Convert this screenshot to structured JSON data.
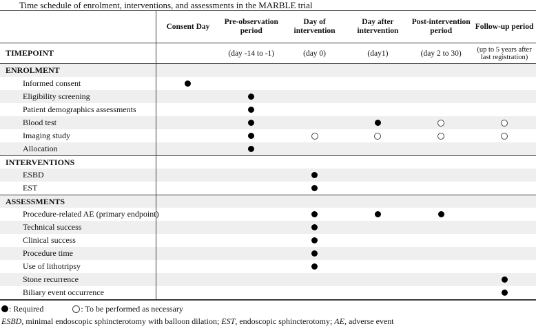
{
  "title": "Time schedule of enrolment, interventions, and assessments in the MARBLE trial",
  "colors": {
    "row_shade": "#efefef",
    "line": "#3c3c3c",
    "dot_filled": "#000000",
    "dot_open_border": "#444444"
  },
  "table": {
    "timepoint_label": "TIMEPOINT",
    "columns": [
      {
        "label": "Consent Day",
        "timepoint": ""
      },
      {
        "label": "Pre-observation\nperiod",
        "timepoint": "(day -14 to -1)"
      },
      {
        "label": "Day of\nintervention",
        "timepoint": "(day 0)"
      },
      {
        "label": "Day after\nintervention",
        "timepoint": "(day1)"
      },
      {
        "label": "Post-intervention\nperiod",
        "timepoint": "(day 2 to 30)"
      },
      {
        "label": "Follow-up period",
        "timepoint": "(up to 5 years after\nlast registration)"
      }
    ],
    "cell_legend": {
      "filled": "Required",
      "open": "To be performed as necessary"
    },
    "rows": [
      {
        "type": "section",
        "label": "ENROLMENT",
        "shaded": true,
        "divider": false,
        "cells": [
          "",
          "",
          "",
          "",
          "",
          ""
        ]
      },
      {
        "type": "item",
        "label": "Informed consent",
        "shaded": false,
        "divider": false,
        "cells": [
          "filled",
          "",
          "",
          "",
          "",
          ""
        ]
      },
      {
        "type": "item",
        "label": "Eligibility screening",
        "shaded": true,
        "divider": false,
        "cells": [
          "",
          "filled",
          "",
          "",
          "",
          ""
        ]
      },
      {
        "type": "item",
        "label": "Patient demographics assessments",
        "shaded": false,
        "divider": false,
        "cells": [
          "",
          "filled",
          "",
          "",
          "",
          ""
        ]
      },
      {
        "type": "item",
        "label": "Blood test",
        "shaded": true,
        "divider": false,
        "cells": [
          "",
          "filled",
          "",
          "filled",
          "open",
          "open"
        ]
      },
      {
        "type": "item",
        "label": "Imaging study",
        "shaded": false,
        "divider": false,
        "cells": [
          "",
          "filled",
          "open",
          "open",
          "open",
          "open"
        ]
      },
      {
        "type": "item",
        "label": "Allocation",
        "shaded": true,
        "divider": false,
        "cells": [
          "",
          "filled",
          "",
          "",
          "",
          ""
        ]
      },
      {
        "type": "section",
        "label": "INTERVENTIONS",
        "shaded": false,
        "divider": true,
        "cells": [
          "",
          "",
          "",
          "",
          "",
          ""
        ]
      },
      {
        "type": "item",
        "label": "ESBD",
        "shaded": true,
        "divider": false,
        "cells": [
          "",
          "",
          "filled",
          "",
          "",
          ""
        ]
      },
      {
        "type": "item",
        "label": "EST",
        "shaded": false,
        "divider": false,
        "cells": [
          "",
          "",
          "filled",
          "",
          "",
          ""
        ]
      },
      {
        "type": "section",
        "label": "ASSESSMENTS",
        "shaded": true,
        "divider": true,
        "cells": [
          "",
          "",
          "",
          "",
          "",
          ""
        ]
      },
      {
        "type": "item",
        "label": "Procedure-related AE (primary endpoint)",
        "shaded": false,
        "divider": false,
        "cells": [
          "",
          "",
          "filled",
          "filled",
          "filled",
          ""
        ]
      },
      {
        "type": "item",
        "label": "Technical success",
        "shaded": true,
        "divider": false,
        "cells": [
          "",
          "",
          "filled",
          "",
          "",
          ""
        ]
      },
      {
        "type": "item",
        "label": "Clinical success",
        "shaded": false,
        "divider": false,
        "cells": [
          "",
          "",
          "filled",
          "",
          "",
          ""
        ]
      },
      {
        "type": "item",
        "label": "Procedure time",
        "shaded": true,
        "divider": false,
        "cells": [
          "",
          "",
          "filled",
          "",
          "",
          ""
        ]
      },
      {
        "type": "item",
        "label": "Use of lithotripsy",
        "shaded": false,
        "divider": false,
        "cells": [
          "",
          "",
          "filled",
          "",
          "",
          ""
        ]
      },
      {
        "type": "item",
        "label": "Stone recurrence",
        "shaded": true,
        "divider": false,
        "cells": [
          "",
          "",
          "",
          "",
          "",
          "filled"
        ]
      },
      {
        "type": "item",
        "label": "Biliary event occurrence",
        "shaded": false,
        "divider": false,
        "cells": [
          "",
          "",
          "",
          "",
          "",
          "filled"
        ]
      }
    ]
  },
  "legend": {
    "items": [
      {
        "symbol": "filled",
        "label": ": Required"
      },
      {
        "symbol": "open",
        "label": ": To be performed as necessary"
      }
    ]
  },
  "footnote": {
    "segments": [
      {
        "text": "ESBD",
        "italic": true
      },
      {
        "text": ", minimal endoscopic sphincterotomy with balloon dilation; ",
        "italic": false
      },
      {
        "text": "EST",
        "italic": true
      },
      {
        "text": ", endoscopic sphincterotomy; ",
        "italic": false
      },
      {
        "text": "AE",
        "italic": true
      },
      {
        "text": ", adverse event",
        "italic": false
      }
    ]
  }
}
